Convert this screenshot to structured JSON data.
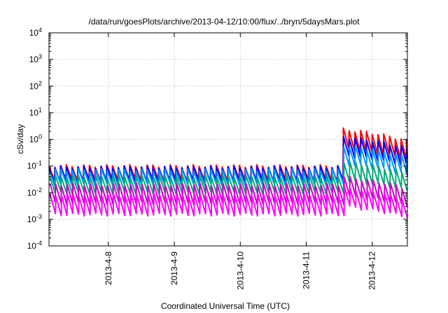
{
  "chart_data": {
    "type": "line",
    "title": "/data/run/goesPlots/archive/2013-04-12/10:00/flux/../bryn/5daysMars.plot",
    "xlabel": "Coordinated Universal Time (UTC)",
    "ylabel": "cSv/day",
    "yscale": "log",
    "ylim": [
      0.0001,
      10000
    ],
    "y_ticks": [
      {
        "value": 0.0001,
        "base": "10",
        "exp": "-4"
      },
      {
        "value": 0.001,
        "base": "10",
        "exp": "-3"
      },
      {
        "value": 0.01,
        "base": "10",
        "exp": "-2"
      },
      {
        "value": 0.1,
        "base": "10",
        "exp": "-1"
      },
      {
        "value": 1,
        "base": "10",
        "exp": "0"
      },
      {
        "value": 10,
        "base": "10",
        "exp": "1"
      },
      {
        "value": 100,
        "base": "10",
        "exp": "2"
      },
      {
        "value": 1000,
        "base": "10",
        "exp": "3"
      },
      {
        "value": 10000,
        "base": "10",
        "exp": "4"
      }
    ],
    "xlim": [
      "2013-04-07 02:24",
      "2013-04-12 12:48"
    ],
    "x_ticks": [
      {
        "date": "2013-04-08 00:00",
        "label": "2013-4-8"
      },
      {
        "date": "2013-04-09 00:00",
        "label": "2013-4-9"
      },
      {
        "date": "2013-04-10 00:00",
        "label": "2013-4-10"
      },
      {
        "date": "2013-04-11 00:00",
        "label": "2013-4-11"
      },
      {
        "date": "2013-04-12 00:00",
        "label": "2013-4-12"
      }
    ],
    "grid": true,
    "sawtooth_period_hours": 2.1,
    "event_start": "2013-04-11 12:00",
    "series": [
      {
        "color": "#ff0000",
        "baseline_peak": 0.1,
        "baseline_trough": 0.03,
        "event_peak": 2.5,
        "event_trough": 0.45
      },
      {
        "color": "#0000ff",
        "baseline_peak": 0.09,
        "baseline_trough": 0.025,
        "event_peak": 1.3,
        "event_trough": 0.25
      },
      {
        "color": "#0099ff",
        "baseline_peak": 0.07,
        "baseline_trough": 0.02,
        "event_peak": 0.6,
        "event_trough": 0.12
      },
      {
        "color": "#00aa77",
        "baseline_peak": 0.04,
        "baseline_trough": 0.01,
        "event_peak": 0.15,
        "event_trough": 0.03
      },
      {
        "color": "#cc00cc",
        "baseline_peak": 0.02,
        "baseline_trough": 0.004,
        "event_peak": 0.04,
        "event_trough": 0.008
      },
      {
        "color": "#ff00ff",
        "baseline_peak": 0.008,
        "baseline_trough": 0.0015,
        "event_peak": 0.015,
        "event_trough": 0.003
      }
    ]
  }
}
